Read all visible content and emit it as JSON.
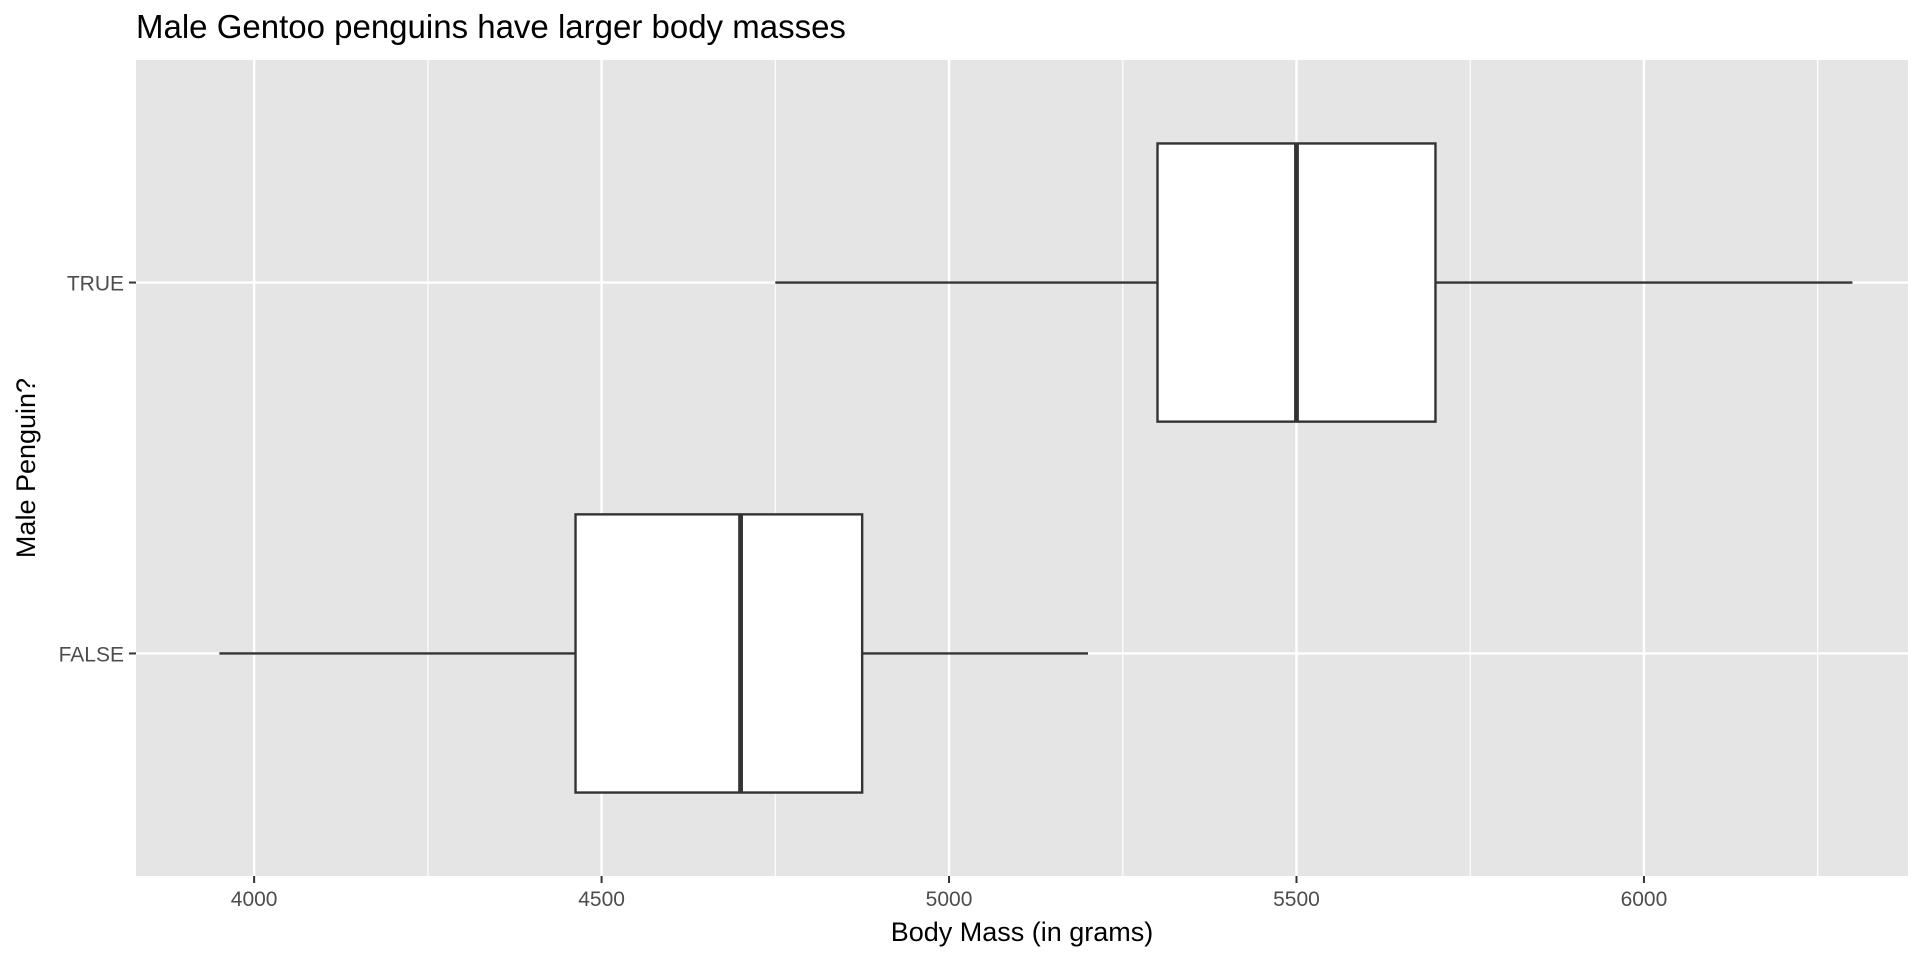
{
  "chart_data": {
    "type": "boxplot",
    "orientation": "horizontal",
    "title": "Male Gentoo penguins have larger body masses",
    "xlabel": "Body Mass (in grams)",
    "ylabel": "Male Penguin?",
    "xlim": [
      3830,
      6380
    ],
    "x_ticks": [
      4000,
      4500,
      5000,
      5500,
      6000
    ],
    "categories": [
      "FALSE",
      "TRUE"
    ],
    "boxes": [
      {
        "category": "FALSE",
        "whisker_low": 3950,
        "q1": 4462.5,
        "median": 4700,
        "q3": 4875,
        "whisker_high": 5200
      },
      {
        "category": "TRUE",
        "whisker_low": 4750,
        "q1": 5300,
        "median": 5500,
        "q3": 5700,
        "whisker_high": 6300
      }
    ],
    "grid": true,
    "colors": {
      "panel_background": "#e5e5e5",
      "grid_line": "#ffffff",
      "box_fill": "#ffffff",
      "box_stroke": "#333333",
      "tick_text": "#4d4d4d"
    }
  }
}
